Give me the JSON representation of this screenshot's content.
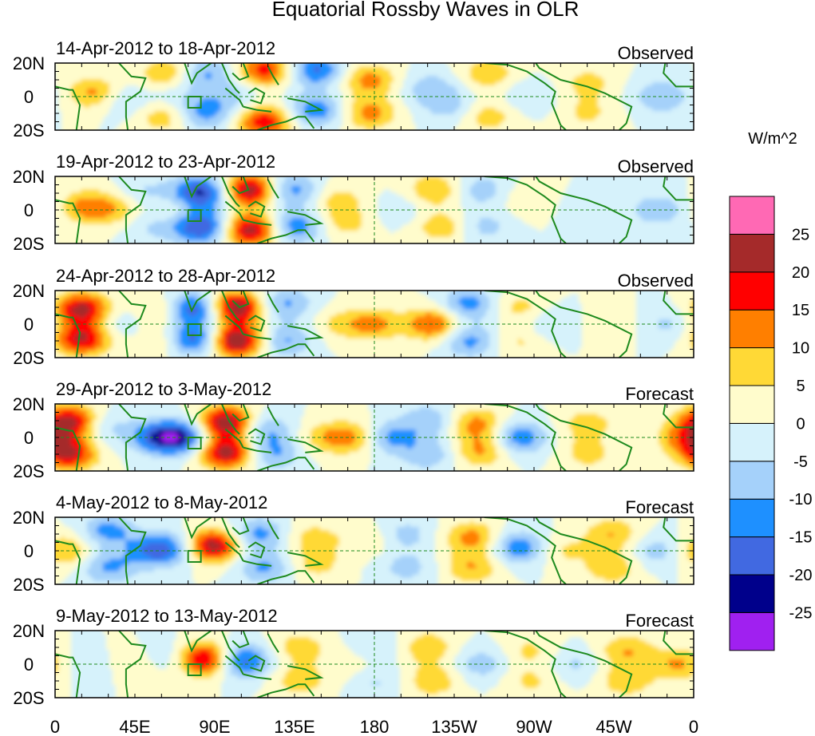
{
  "chart_data": {
    "type": "heatmap",
    "title": "Equatorial Rossby Waves in OLR",
    "variable": "OLR anomaly",
    "units": "W/m^2",
    "lat_range": [
      -20,
      20
    ],
    "lon_range": [
      0,
      360
    ],
    "x_ticks": [
      {
        "lon": 0,
        "label": "0"
      },
      {
        "lon": 45,
        "label": "45E"
      },
      {
        "lon": 90,
        "label": "90E"
      },
      {
        "lon": 135,
        "label": "135E"
      },
      {
        "lon": 180,
        "label": "180"
      },
      {
        "lon": 225,
        "label": "135W"
      },
      {
        "lon": 270,
        "label": "90W"
      },
      {
        "lon": 315,
        "label": "45W"
      },
      {
        "lon": 360,
        "label": "0"
      }
    ],
    "y_ticks": [
      {
        "lat": 20,
        "label": "20N"
      },
      {
        "lat": 0,
        "label": "0"
      },
      {
        "lat": -20,
        "label": "20S"
      }
    ],
    "reference_lines": [
      "equator",
      "180"
    ],
    "colorbar": {
      "label": "W/m^2",
      "levels": [
        -25,
        -20,
        -15,
        -10,
        -5,
        0,
        5,
        10,
        15,
        20,
        25
      ],
      "level_labels": [
        "-25",
        "-20",
        "-15",
        "-10",
        "-5",
        "0",
        "5",
        "10",
        "15",
        "20",
        "25"
      ],
      "colors": [
        "#a020f0",
        "#00008b",
        "#4169e1",
        "#1e90ff",
        "#a5d1fa",
        "#d6f2fb",
        "#fffccc",
        "#ffd936",
        "#ff7f00",
        "#ff0000",
        "#a52a2a",
        "#ff69b4"
      ]
    },
    "panels": [
      {
        "date_range": "14-Apr-2012 to 18-Apr-2012",
        "status": "Observed",
        "anomalies": [
          {
            "lon": 22,
            "lat": 2,
            "value": 12
          },
          {
            "lon": 38,
            "lat": -2,
            "value": -6
          },
          {
            "lon": 63,
            "lat": 14,
            "value": 10
          },
          {
            "lon": 62,
            "lat": -12,
            "value": 9
          },
          {
            "lon": 70,
            "lat": 0,
            "value": -4
          },
          {
            "lon": 85,
            "lat": 14,
            "value": -11
          },
          {
            "lon": 84,
            "lat": -10,
            "value": -12
          },
          {
            "lon": 100,
            "lat": 0,
            "value": -6
          },
          {
            "lon": 118,
            "lat": 16,
            "value": 18
          },
          {
            "lon": 118,
            "lat": -15,
            "value": 19
          },
          {
            "lon": 147,
            "lat": 16,
            "value": -16
          },
          {
            "lon": 147,
            "lat": -8,
            "value": -14
          },
          {
            "lon": 177,
            "lat": 10,
            "value": 12
          },
          {
            "lon": 177,
            "lat": -10,
            "value": 12
          },
          {
            "lon": 212,
            "lat": 5,
            "value": -8
          },
          {
            "lon": 222,
            "lat": -6,
            "value": -7
          },
          {
            "lon": 244,
            "lat": 14,
            "value": 9
          },
          {
            "lon": 244,
            "lat": -12,
            "value": 8
          },
          {
            "lon": 268,
            "lat": 0,
            "value": -5
          },
          {
            "lon": 300,
            "lat": 8,
            "value": 7
          },
          {
            "lon": 300,
            "lat": -10,
            "value": 6
          },
          {
            "lon": 342,
            "lat": 0,
            "value": -10
          }
        ]
      },
      {
        "date_range": "19-Apr-2012 to 23-Apr-2012",
        "status": "Observed",
        "anomalies": [
          {
            "lon": 18,
            "lat": 2,
            "value": 12
          },
          {
            "lon": 35,
            "lat": 0,
            "value": 7
          },
          {
            "lon": 52,
            "lat": 10,
            "value": -6
          },
          {
            "lon": 55,
            "lat": -10,
            "value": -6
          },
          {
            "lon": 68,
            "lat": 0,
            "value": 5
          },
          {
            "lon": 82,
            "lat": 10,
            "value": -22
          },
          {
            "lon": 82,
            "lat": -10,
            "value": -21
          },
          {
            "lon": 110,
            "lat": 12,
            "value": 24
          },
          {
            "lon": 110,
            "lat": -12,
            "value": 23
          },
          {
            "lon": 133,
            "lat": 12,
            "value": -13
          },
          {
            "lon": 136,
            "lat": -10,
            "value": -14
          },
          {
            "lon": 160,
            "lat": 6,
            "value": 7
          },
          {
            "lon": 163,
            "lat": -8,
            "value": 7
          },
          {
            "lon": 195,
            "lat": 0,
            "value": -4
          },
          {
            "lon": 214,
            "lat": 12,
            "value": 10
          },
          {
            "lon": 218,
            "lat": -10,
            "value": 9
          },
          {
            "lon": 240,
            "lat": 12,
            "value": -8
          },
          {
            "lon": 242,
            "lat": -10,
            "value": -7
          },
          {
            "lon": 268,
            "lat": 6,
            "value": 5
          },
          {
            "lon": 300,
            "lat": 0,
            "value": -5
          },
          {
            "lon": 340,
            "lat": 0,
            "value": -9
          }
        ]
      },
      {
        "date_range": "24-Apr-2012 to 28-Apr-2012",
        "status": "Observed",
        "anomalies": [
          {
            "lon": 15,
            "lat": 9,
            "value": 22
          },
          {
            "lon": 15,
            "lat": -9,
            "value": 21
          },
          {
            "lon": 38,
            "lat": 0,
            "value": -5
          },
          {
            "lon": 60,
            "lat": 8,
            "value": 8
          },
          {
            "lon": 60,
            "lat": -10,
            "value": 7
          },
          {
            "lon": 78,
            "lat": 9,
            "value": -20
          },
          {
            "lon": 78,
            "lat": -9,
            "value": -19
          },
          {
            "lon": 102,
            "lat": 10,
            "value": 25
          },
          {
            "lon": 102,
            "lat": -10,
            "value": 26
          },
          {
            "lon": 130,
            "lat": 12,
            "value": -11
          },
          {
            "lon": 130,
            "lat": -10,
            "value": -11
          },
          {
            "lon": 160,
            "lat": 0,
            "value": 6
          },
          {
            "lon": 180,
            "lat": 0,
            "value": 11
          },
          {
            "lon": 213,
            "lat": 0,
            "value": 16
          },
          {
            "lon": 233,
            "lat": 12,
            "value": -13
          },
          {
            "lon": 234,
            "lat": -10,
            "value": -12
          },
          {
            "lon": 262,
            "lat": 10,
            "value": 7
          },
          {
            "lon": 262,
            "lat": -10,
            "value": 6
          },
          {
            "lon": 280,
            "lat": 0,
            "value": -6
          },
          {
            "lon": 312,
            "lat": 0,
            "value": 5
          },
          {
            "lon": 345,
            "lat": 0,
            "value": -6
          }
        ]
      },
      {
        "date_range": "29-Apr-2012 to 3-May-2012",
        "status": "Forecast",
        "anomalies": [
          {
            "lon": 8,
            "lat": 10,
            "value": 21
          },
          {
            "lon": 8,
            "lat": -10,
            "value": 20
          },
          {
            "lon": 30,
            "lat": 6,
            "value": -6
          },
          {
            "lon": 58,
            "lat": 0,
            "value": -16
          },
          {
            "lon": 72,
            "lat": 0,
            "value": -18
          },
          {
            "lon": 96,
            "lat": 9,
            "value": 24
          },
          {
            "lon": 96,
            "lat": -9,
            "value": 23
          },
          {
            "lon": 120,
            "lat": 4,
            "value": -10
          },
          {
            "lon": 124,
            "lat": -10,
            "value": -10
          },
          {
            "lon": 150,
            "lat": 0,
            "value": 7
          },
          {
            "lon": 168,
            "lat": 0,
            "value": 12
          },
          {
            "lon": 188,
            "lat": 0,
            "value": -12
          },
          {
            "lon": 210,
            "lat": 10,
            "value": -9
          },
          {
            "lon": 210,
            "lat": -10,
            "value": -9
          },
          {
            "lon": 238,
            "lat": 8,
            "value": 12
          },
          {
            "lon": 240,
            "lat": -8,
            "value": 11
          },
          {
            "lon": 262,
            "lat": 0,
            "value": -14
          },
          {
            "lon": 300,
            "lat": 8,
            "value": 8
          },
          {
            "lon": 300,
            "lat": -10,
            "value": 7
          },
          {
            "lon": 355,
            "lat": 0,
            "value": 12
          }
        ]
      },
      {
        "date_range": "4-May-2012 to 8-May-2012",
        "status": "Forecast",
        "anomalies": [
          {
            "lon": 5,
            "lat": 0,
            "value": 11
          },
          {
            "lon": 30,
            "lat": 12,
            "value": -12
          },
          {
            "lon": 30,
            "lat": -10,
            "value": -11
          },
          {
            "lon": 55,
            "lat": 0,
            "value": -14
          },
          {
            "lon": 70,
            "lat": 2,
            "value": -10
          },
          {
            "lon": 88,
            "lat": 3,
            "value": 25
          },
          {
            "lon": 115,
            "lat": 10,
            "value": -12
          },
          {
            "lon": 118,
            "lat": -10,
            "value": -11
          },
          {
            "lon": 145,
            "lat": 8,
            "value": 7
          },
          {
            "lon": 147,
            "lat": -8,
            "value": 7
          },
          {
            "lon": 175,
            "lat": 6,
            "value": 5
          },
          {
            "lon": 198,
            "lat": 10,
            "value": -7
          },
          {
            "lon": 198,
            "lat": -10,
            "value": -7
          },
          {
            "lon": 235,
            "lat": 8,
            "value": 12
          },
          {
            "lon": 235,
            "lat": -10,
            "value": 10
          },
          {
            "lon": 262,
            "lat": 2,
            "value": -14
          },
          {
            "lon": 286,
            "lat": 0,
            "value": 6
          },
          {
            "lon": 314,
            "lat": 10,
            "value": 10
          },
          {
            "lon": 314,
            "lat": -10,
            "value": 9
          },
          {
            "lon": 340,
            "lat": 0,
            "value": -8
          }
        ]
      },
      {
        "date_range": "9-May-2012 to 13-May-2012",
        "status": "Forecast",
        "anomalies": [
          {
            "lon": 18,
            "lat": 0,
            "value": -5
          },
          {
            "lon": 45,
            "lat": 2,
            "value": 6
          },
          {
            "lon": 60,
            "lat": 5,
            "value": -6
          },
          {
            "lon": 85,
            "lat": 3,
            "value": 23
          },
          {
            "lon": 105,
            "lat": 2,
            "value": -19
          },
          {
            "lon": 138,
            "lat": 10,
            "value": 8
          },
          {
            "lon": 138,
            "lat": -10,
            "value": 8
          },
          {
            "lon": 168,
            "lat": 0,
            "value": 5
          },
          {
            "lon": 180,
            "lat": 10,
            "value": -6
          },
          {
            "lon": 180,
            "lat": -10,
            "value": -6
          },
          {
            "lon": 210,
            "lat": 10,
            "value": 9
          },
          {
            "lon": 213,
            "lat": -10,
            "value": 9
          },
          {
            "lon": 240,
            "lat": 0,
            "value": -8
          },
          {
            "lon": 268,
            "lat": 8,
            "value": 6
          },
          {
            "lon": 268,
            "lat": -10,
            "value": 6
          },
          {
            "lon": 293,
            "lat": 0,
            "value": -6
          },
          {
            "lon": 322,
            "lat": 8,
            "value": 10
          },
          {
            "lon": 322,
            "lat": -10,
            "value": 9
          },
          {
            "lon": 352,
            "lat": 0,
            "value": 11
          }
        ]
      }
    ]
  }
}
